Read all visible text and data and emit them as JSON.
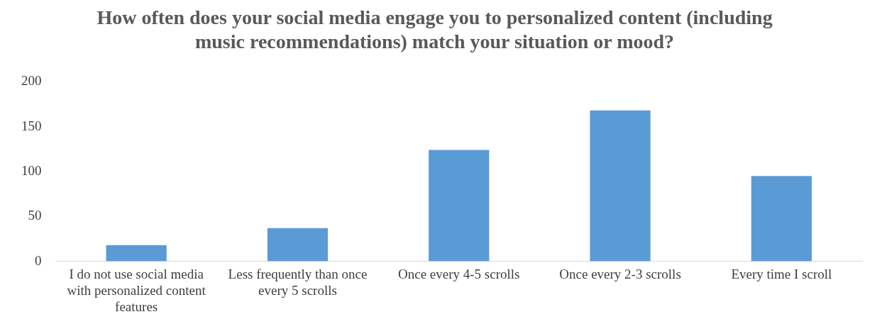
{
  "chart_data": {
    "type": "bar",
    "title": "How often does your social media engage you to personalized content (including music recommendations) match your situation or mood?",
    "categories": [
      "I do not use social media with personalized content features",
      "Less frequently than once every 5 scrolls",
      "Once every 4-5 scrolls",
      "Once every 2-3 scrolls",
      "Every time I scroll"
    ],
    "values": [
      18,
      37,
      124,
      168,
      95
    ],
    "color": "#5b9bd5",
    "ylim": [
      0,
      200
    ],
    "yticks": [
      0,
      50,
      100,
      150,
      200
    ],
    "grid": false,
    "legend": false
  }
}
